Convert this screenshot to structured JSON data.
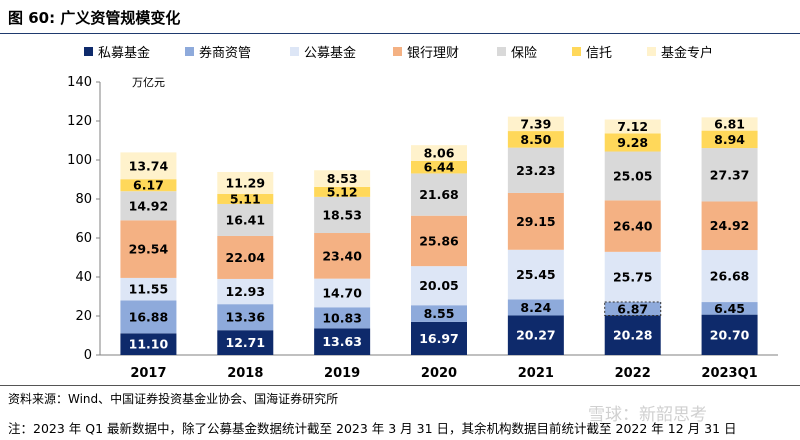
{
  "header": {
    "title": "图 60:  广义资管规模变化"
  },
  "chart_data": {
    "type": "bar",
    "stacked": true,
    "title": "",
    "ylabel": "万亿元",
    "xlabel": "",
    "ylim": [
      0,
      140
    ],
    "yticks": [
      0,
      20,
      40,
      60,
      80,
      100,
      120,
      140
    ],
    "grid": false,
    "legend_position": "top",
    "categories": [
      "2017",
      "2018",
      "2019",
      "2020",
      "2021",
      "2022",
      "2023Q1"
    ],
    "series": [
      {
        "name": "私募基金",
        "color": "#0e2a6b",
        "label_color": "#ffffff",
        "values": [
          11.1,
          12.71,
          13.63,
          16.97,
          20.27,
          20.28,
          20.7
        ],
        "labels": [
          "11.10",
          "12.71",
          "13.63",
          "16.97",
          "20.27",
          "20.28",
          "20.70"
        ]
      },
      {
        "name": "券商资管",
        "color": "#8eaadb",
        "label_color": "#000000",
        "values": [
          16.88,
          13.36,
          10.83,
          8.55,
          8.24,
          6.87,
          6.45
        ],
        "labels": [
          "16.88",
          "13.36",
          "10.83",
          "8.55",
          "8.24",
          "6.87",
          "6.45"
        ]
      },
      {
        "name": "公募基金",
        "color": "#dde6f6",
        "label_color": "#000000",
        "values": [
          11.55,
          12.93,
          14.7,
          20.05,
          25.45,
          25.75,
          26.68
        ],
        "labels": [
          "11.55",
          "12.93",
          "14.70",
          "20.05",
          "25.45",
          "25.75",
          "26.68"
        ]
      },
      {
        "name": "银行理财",
        "color": "#f4b183",
        "label_color": "#000000",
        "values": [
          29.54,
          22.04,
          23.4,
          25.86,
          29.15,
          26.4,
          24.92
        ],
        "labels": [
          "29.54",
          "22.04",
          "23.40",
          "25.86",
          "29.15",
          "26.40",
          "24.92"
        ]
      },
      {
        "name": "保险",
        "color": "#d9d9d9",
        "label_color": "#000000",
        "values": [
          14.92,
          16.41,
          18.53,
          21.68,
          23.23,
          25.05,
          27.37
        ],
        "labels": [
          "14.92",
          "16.41",
          "18.53",
          "21.68",
          "23.23",
          "25.05",
          "27.37"
        ]
      },
      {
        "name": "信托",
        "color": "#ffd85a",
        "label_color": "#000000",
        "values": [
          6.17,
          5.11,
          5.12,
          6.44,
          8.5,
          9.28,
          8.94
        ],
        "labels": [
          "6.17",
          "5.11",
          "5.12",
          "6.44",
          "8.50",
          "9.28",
          "8.94"
        ]
      },
      {
        "name": "基金专户",
        "color": "#fff2cc",
        "label_color": "#000000",
        "values": [
          13.74,
          11.29,
          8.53,
          8.06,
          7.39,
          7.12,
          6.81
        ],
        "labels": [
          "13.74",
          "11.29",
          "8.53",
          "8.06",
          "7.39",
          "7.12",
          "6.81"
        ]
      }
    ]
  },
  "footer": {
    "source": "资料来源：Wind、中国证券投资基金业协会、国海证券研究所",
    "note": "注：2023 年 Q1 最新数据中，除了公募基金数据统计截至 2023 年 3 月 31 日，其余机构数据目前统计截至 2022 年 12 月 31 日",
    "watermark": "雪球：新韶思考"
  }
}
